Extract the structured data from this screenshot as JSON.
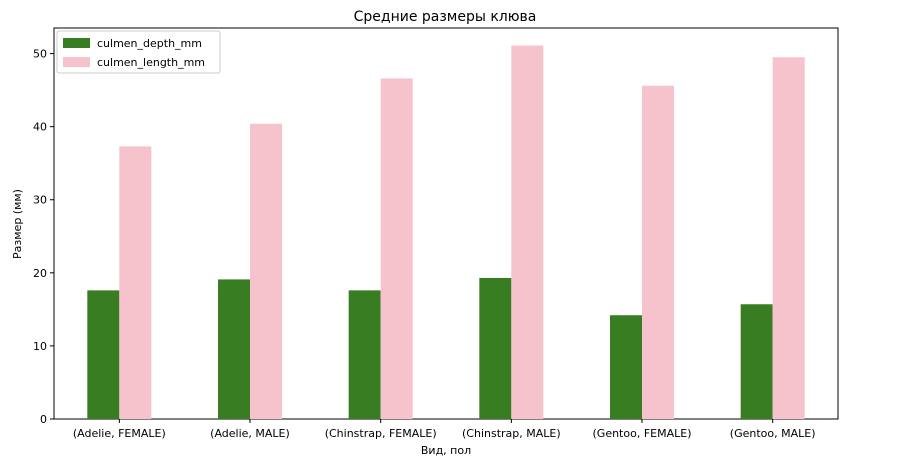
{
  "chart_data": {
    "type": "bar",
    "title": "Средние размеры клюва",
    "xlabel": "Вид, пол",
    "ylabel": "Размер (мм)",
    "ylim": [
      0,
      53.5
    ],
    "yticks": [
      0,
      10,
      20,
      30,
      40,
      50
    ],
    "categories": [
      "(Adelie, FEMALE)",
      "(Adelie, MALE)",
      "(Chinstrap, FEMALE)",
      "(Chinstrap, MALE)",
      "(Gentoo, FEMALE)",
      "(Gentoo, MALE)"
    ],
    "series": [
      {
        "name": "culmen_depth_mm",
        "color": "#387d22",
        "values": [
          17.6,
          19.1,
          17.6,
          19.3,
          14.2,
          15.7
        ]
      },
      {
        "name": "culmen_length_mm",
        "color": "#f6c2cb",
        "values": [
          37.3,
          40.4,
          46.6,
          51.1,
          45.6,
          49.5
        ]
      }
    ],
    "grid": false,
    "legend_position": "top-left"
  }
}
